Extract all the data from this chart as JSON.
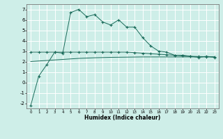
{
  "x": [
    0,
    1,
    2,
    3,
    4,
    5,
    6,
    7,
    8,
    9,
    10,
    11,
    12,
    13,
    14,
    15,
    16,
    17,
    18,
    19,
    20,
    21,
    22,
    23
  ],
  "line1": [
    -2.2,
    0.6,
    1.7,
    2.9,
    2.8,
    6.7,
    7.0,
    6.3,
    6.5,
    5.8,
    5.5,
    6.0,
    5.3,
    5.3,
    4.3,
    3.5,
    3.0,
    2.9,
    2.6,
    2.6,
    2.5,
    2.4,
    2.5,
    2.4
  ],
  "line2": [
    2.9,
    2.9,
    2.9,
    2.9,
    2.9,
    2.9,
    2.9,
    2.9,
    2.9,
    2.9,
    2.9,
    2.9,
    2.9,
    2.85,
    2.8,
    2.75,
    2.7,
    2.65,
    2.6,
    2.55,
    2.5,
    2.48,
    2.46,
    2.44
  ],
  "line3": [
    2.0,
    2.05,
    2.1,
    2.15,
    2.2,
    2.25,
    2.3,
    2.33,
    2.36,
    2.38,
    2.4,
    2.41,
    2.42,
    2.43,
    2.44,
    2.44,
    2.44,
    2.44,
    2.44,
    2.44,
    2.44,
    2.44,
    2.44,
    2.44
  ],
  "color": "#1a6b5a",
  "bg_color": "#ceeee8",
  "grid_color": "#ffffff",
  "xlabel": "Humidex (Indice chaleur)",
  "xlim": [
    -0.5,
    23.5
  ],
  "ylim": [
    -2.5,
    7.5
  ],
  "yticks": [
    -2,
    -1,
    0,
    1,
    2,
    3,
    4,
    5,
    6,
    7
  ],
  "xticks": [
    0,
    1,
    2,
    3,
    4,
    5,
    6,
    7,
    8,
    9,
    10,
    11,
    12,
    13,
    14,
    15,
    16,
    17,
    18,
    19,
    20,
    21,
    22,
    23
  ],
  "marker": "+",
  "markersize": 3,
  "linewidth": 0.7
}
